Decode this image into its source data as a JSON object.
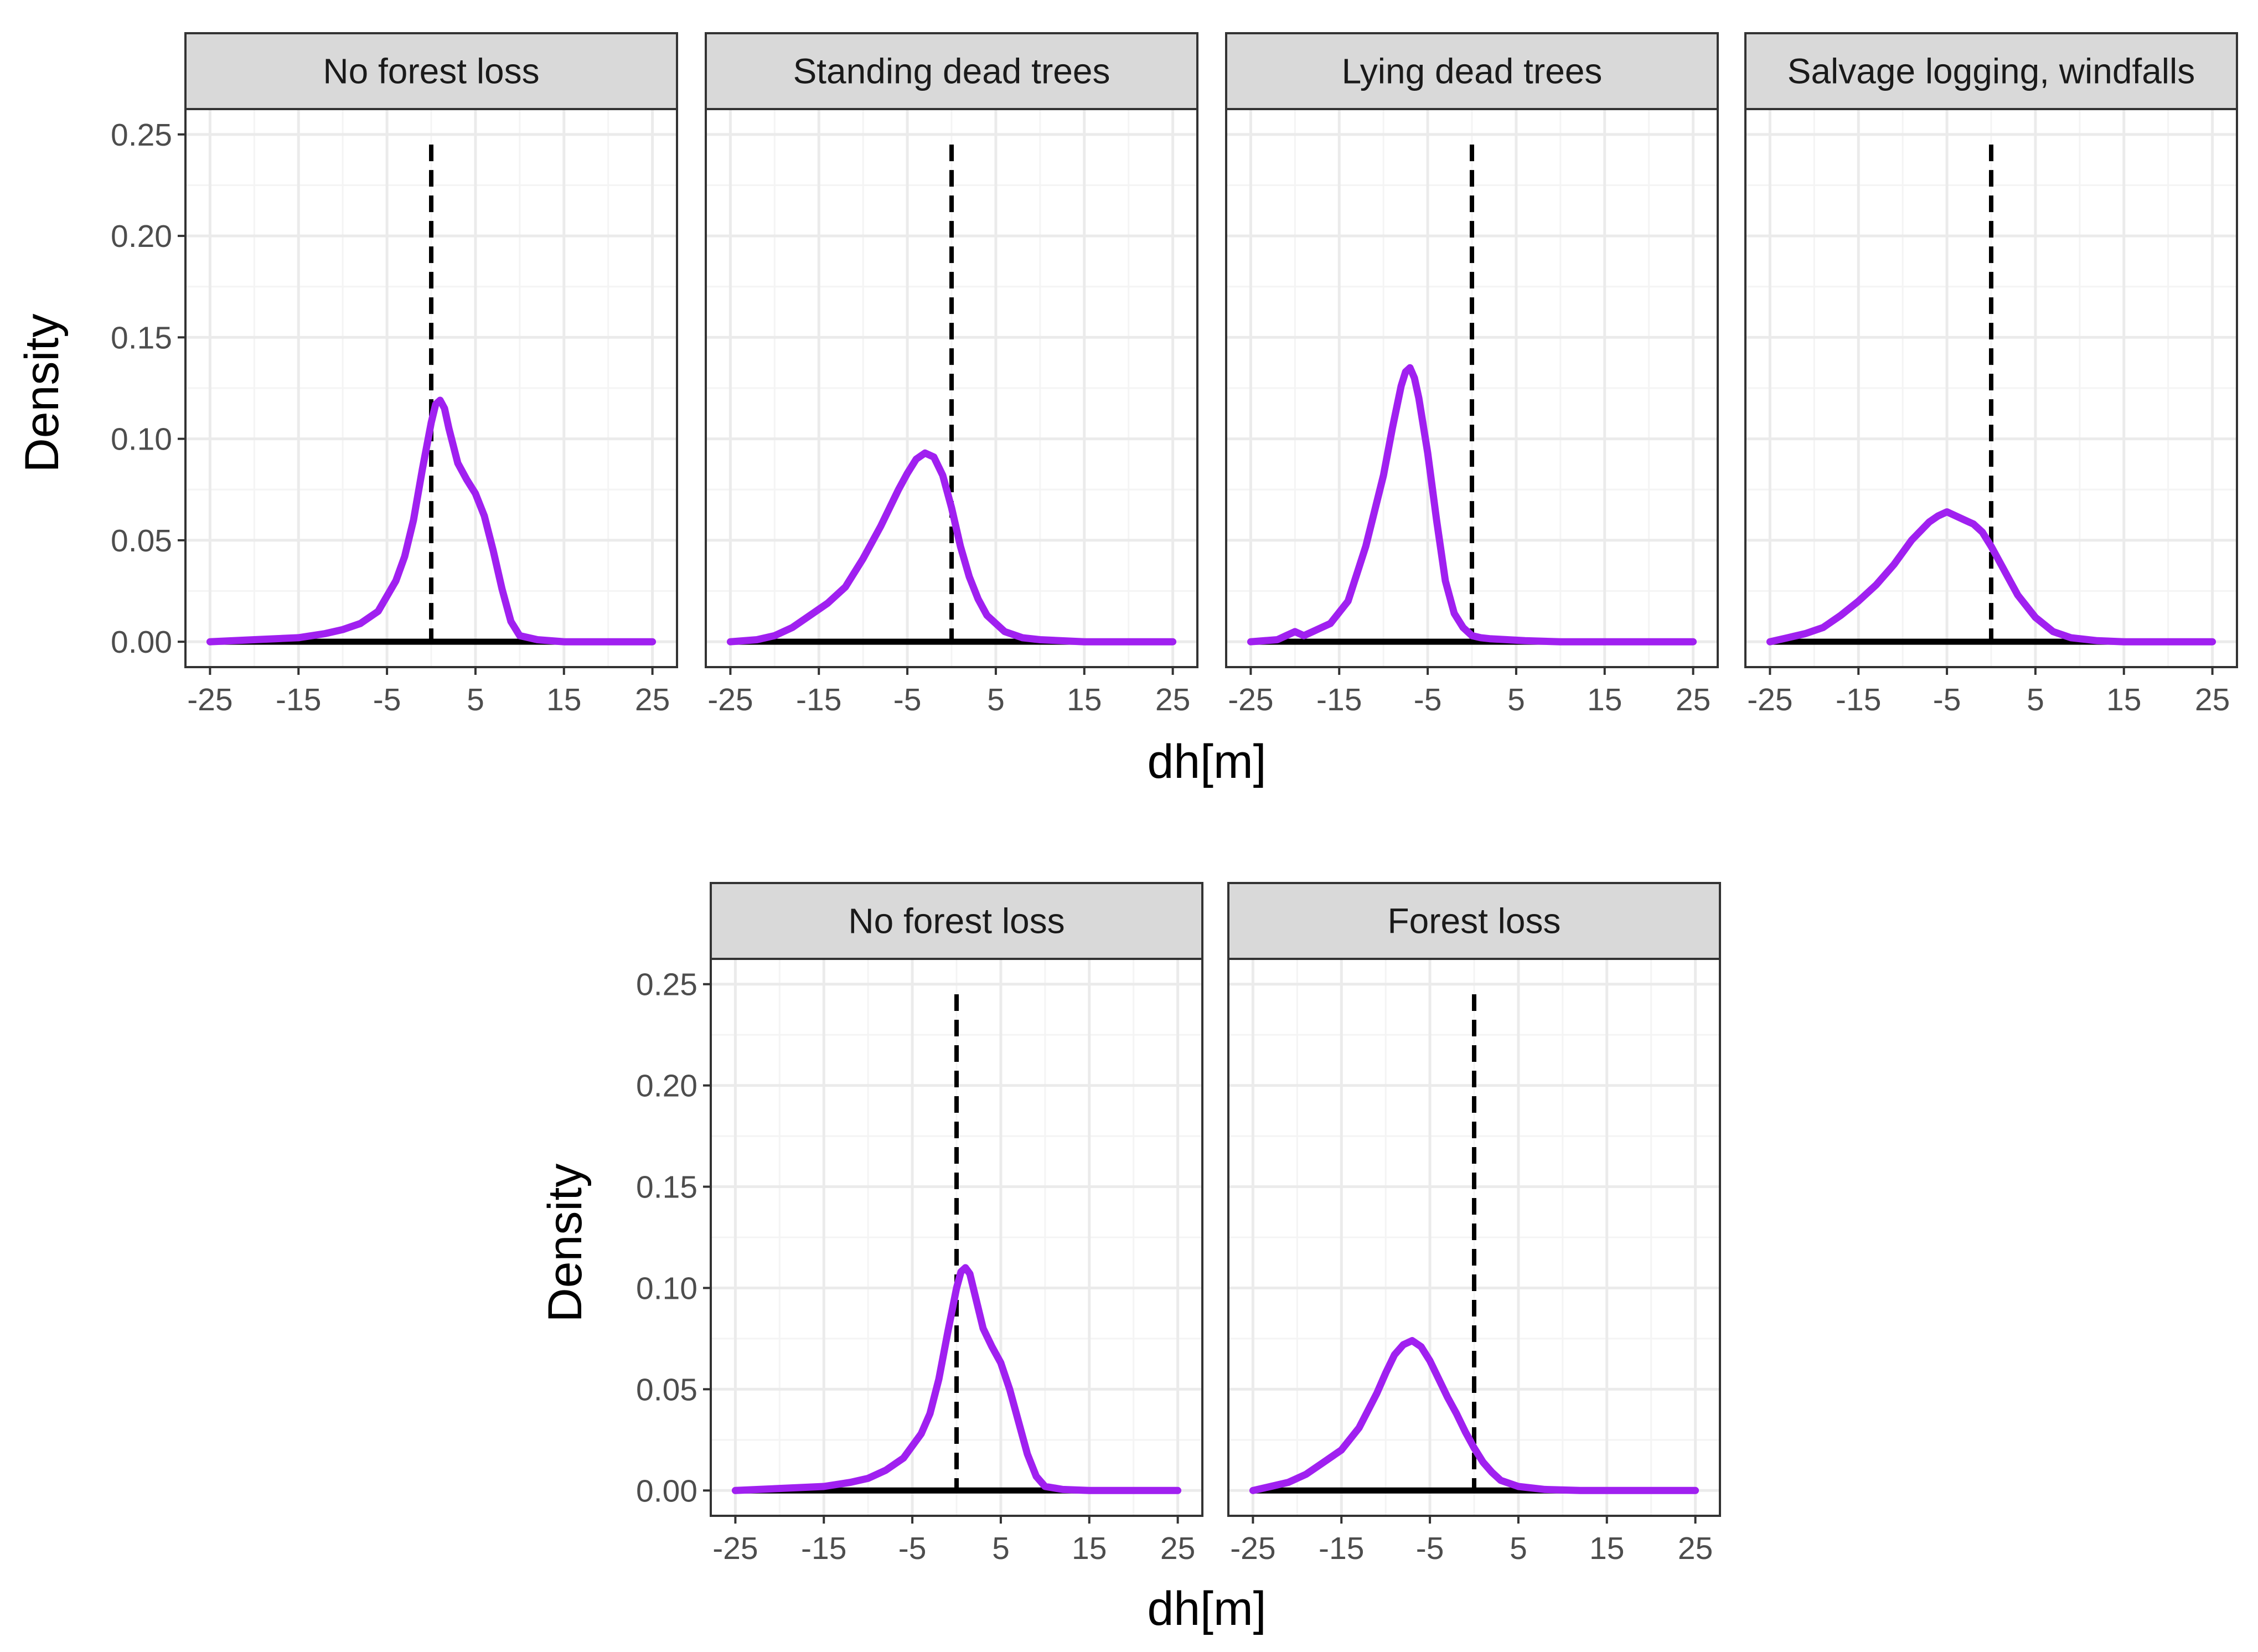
{
  "colors": {
    "density_line": "#A020F0",
    "reference_line": "#000000",
    "baseline": "#000000",
    "strip_fill": "#D9D9D9",
    "panel_border": "#333333",
    "grid_major": "#EBEBEB",
    "grid_minor": "#F4F4F4"
  },
  "chart_data": [
    {
      "type": "line",
      "subtype": "density",
      "title": "",
      "xlabel": "dh[m]",
      "ylabel": "Density",
      "xlim": [
        -25,
        25
      ],
      "ylim": [
        0,
        0.25
      ],
      "x_ticks": [
        -25,
        -15,
        -5,
        5,
        15,
        25
      ],
      "y_ticks": [
        "0.00",
        "0.05",
        "0.10",
        "0.15",
        "0.20",
        "0.25"
      ],
      "reference_line_x": 0,
      "grid": true,
      "facets": [
        {
          "label": "No forest loss",
          "x": [
            -25,
            -20,
            -15,
            -12,
            -10,
            -8,
            -6,
            -4,
            -3,
            -2,
            -1,
            0,
            0.5,
            1,
            1.5,
            2,
            3,
            4,
            5,
            6,
            7,
            8,
            9,
            10,
            12,
            15,
            20,
            25
          ],
          "y": [
            0,
            0.001,
            0.002,
            0.004,
            0.006,
            0.009,
            0.015,
            0.03,
            0.042,
            0.06,
            0.085,
            0.108,
            0.117,
            0.119,
            0.115,
            0.105,
            0.088,
            0.08,
            0.073,
            0.062,
            0.045,
            0.026,
            0.01,
            0.003,
            0.001,
            0,
            0,
            0
          ]
        },
        {
          "label": "Standing dead trees",
          "x": [
            -25,
            -22,
            -20,
            -18,
            -16,
            -14,
            -12,
            -10,
            -8,
            -6,
            -5,
            -4,
            -3,
            -2,
            -1,
            0,
            1,
            2,
            3,
            4,
            6,
            8,
            10,
            15,
            20,
            25
          ],
          "y": [
            0,
            0.001,
            0.003,
            0.007,
            0.013,
            0.019,
            0.027,
            0.041,
            0.057,
            0.075,
            0.083,
            0.09,
            0.093,
            0.091,
            0.082,
            0.066,
            0.047,
            0.032,
            0.021,
            0.013,
            0.005,
            0.002,
            0.001,
            0,
            0,
            0
          ]
        },
        {
          "label": "Lying dead trees",
          "x": [
            -25,
            -22,
            -21,
            -20,
            -19,
            -18,
            -16,
            -14,
            -12,
            -10,
            -9,
            -8,
            -7.5,
            -7,
            -6.5,
            -6,
            -5,
            -4,
            -3,
            -2,
            -1,
            0,
            1,
            2,
            4,
            6,
            10,
            15,
            20,
            25
          ],
          "y": [
            0,
            0.001,
            0.003,
            0.005,
            0.003,
            0.005,
            0.009,
            0.02,
            0.047,
            0.082,
            0.105,
            0.126,
            0.133,
            0.135,
            0.13,
            0.12,
            0.093,
            0.06,
            0.03,
            0.014,
            0.007,
            0.003,
            0.002,
            0.0015,
            0.001,
            0.0005,
            0,
            0,
            0,
            0
          ]
        },
        {
          "label": "Salvage logging, windfalls",
          "x": [
            -25,
            -23,
            -21,
            -19,
            -17,
            -15,
            -13,
            -11,
            -9,
            -7,
            -6,
            -5,
            -4,
            -3,
            -2,
            -1,
            0,
            1,
            2,
            3,
            5,
            7,
            9,
            12,
            15,
            20,
            25
          ],
          "y": [
            0,
            0.002,
            0.004,
            0.007,
            0.013,
            0.02,
            0.028,
            0.038,
            0.05,
            0.059,
            0.062,
            0.064,
            0.062,
            0.06,
            0.058,
            0.054,
            0.047,
            0.039,
            0.031,
            0.023,
            0.012,
            0.005,
            0.002,
            0.0005,
            0,
            0,
            0
          ]
        }
      ]
    },
    {
      "type": "line",
      "subtype": "density",
      "title": "",
      "xlabel": "dh[m]",
      "ylabel": "Density",
      "xlim": [
        -25,
        25
      ],
      "ylim": [
        0,
        0.25
      ],
      "x_ticks": [
        -25,
        -15,
        -5,
        5,
        15,
        25
      ],
      "y_ticks": [
        "0.00",
        "0.05",
        "0.10",
        "0.15",
        "0.20",
        "0.25"
      ],
      "reference_line_x": 0,
      "grid": true,
      "facets": [
        {
          "label": "No forest loss",
          "x": [
            -25,
            -20,
            -15,
            -12,
            -10,
            -8,
            -6,
            -4,
            -3,
            -2,
            -1,
            0,
            0.5,
            1,
            1.5,
            2,
            3,
            4,
            5,
            6,
            7,
            8,
            9,
            10,
            12,
            15,
            20,
            25
          ],
          "y": [
            0,
            0.001,
            0.002,
            0.004,
            0.006,
            0.01,
            0.016,
            0.028,
            0.038,
            0.055,
            0.078,
            0.1,
            0.108,
            0.11,
            0.107,
            0.098,
            0.08,
            0.071,
            0.063,
            0.05,
            0.034,
            0.018,
            0.007,
            0.002,
            0.0005,
            0,
            0,
            0
          ]
        },
        {
          "label": "Forest loss",
          "x": [
            -25,
            -23,
            -21,
            -19,
            -17,
            -15,
            -13,
            -11,
            -10,
            -9,
            -8,
            -7,
            -6,
            -5,
            -4,
            -3,
            -2,
            -1,
            0,
            1,
            2,
            3,
            5,
            8,
            12,
            15,
            20,
            25
          ],
          "y": [
            0,
            0.002,
            0.004,
            0.008,
            0.014,
            0.02,
            0.031,
            0.048,
            0.058,
            0.067,
            0.072,
            0.074,
            0.071,
            0.064,
            0.055,
            0.046,
            0.038,
            0.029,
            0.021,
            0.014,
            0.009,
            0.005,
            0.002,
            0.0005,
            0,
            0,
            0,
            0
          ]
        }
      ]
    }
  ]
}
